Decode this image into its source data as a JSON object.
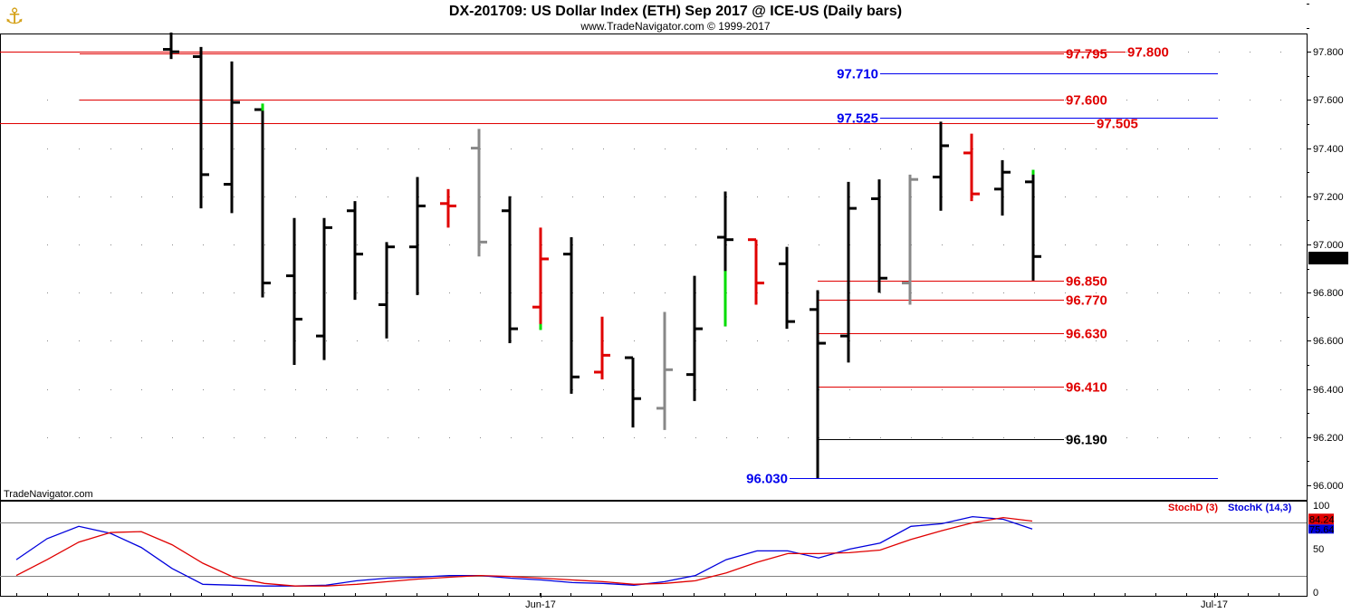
{
  "header": {
    "title": "DX-201709:  US Dollar Index (ETH) Sep 2017 @ ICE-US  (Daily bars)",
    "subtitle": "www.TradeNavigator.com © 1999-2017"
  },
  "watermark": "TradeNavigator.com",
  "icons": {
    "logo": "anchor-icon"
  },
  "colors": {
    "up": "#00dd00",
    "down": "#e00000",
    "neutral": "#000000",
    "gray": "#888888",
    "red_level": "#e00000",
    "blue_level": "#0000ee",
    "black_level": "#000000",
    "stoch_d": "#e00000",
    "stoch_k": "#0000dd"
  },
  "chart_data": [
    {
      "type": "ohlc",
      "price_labels": [
        "97.800",
        "97.600",
        "97.400",
        "97.200",
        "97.000",
        "96.800",
        "96.600",
        "96.400",
        "96.200",
        "96.000"
      ],
      "last_price": "96.945",
      "x_labels": [
        "Jun-17",
        "Jul-17"
      ],
      "ylim": [
        95.99,
        98.07
      ],
      "bars": [
        {
          "x": 189,
          "o": 97.81,
          "h": 97.88,
          "l": 97.77,
          "c": 97.8,
          "color": "neutral"
        },
        {
          "x": 222,
          "o": 97.78,
          "h": 97.82,
          "l": 97.15,
          "c": 97.29,
          "color": "neutral"
        },
        {
          "x": 256,
          "o": 97.25,
          "h": 97.76,
          "l": 97.13,
          "c": 97.59,
          "color": "neutral"
        },
        {
          "x": 290,
          "o": 97.56,
          "h": 97.58,
          "l": 96.78,
          "c": 96.84,
          "color": "neutral"
        },
        {
          "x": 325,
          "o": 96.87,
          "h": 97.11,
          "l": 96.5,
          "c": 96.69,
          "color": "neutral"
        },
        {
          "x": 358,
          "o": 96.62,
          "h": 97.11,
          "l": 96.52,
          "c": 97.07,
          "color": "neutral"
        },
        {
          "x": 392,
          "o": 97.14,
          "h": 97.18,
          "l": 96.77,
          "c": 96.96,
          "color": "neutral"
        },
        {
          "x": 427,
          "o": 96.75,
          "h": 97.01,
          "l": 96.61,
          "c": 96.99,
          "color": "neutral"
        },
        {
          "x": 461,
          "o": 96.99,
          "h": 97.28,
          "l": 96.79,
          "c": 97.16,
          "color": "neutral"
        },
        {
          "x": 495,
          "o": 97.17,
          "h": 97.23,
          "l": 97.07,
          "c": 97.16,
          "color": "down"
        },
        {
          "x": 529,
          "o": 97.4,
          "h": 97.48,
          "l": 96.95,
          "c": 97.01,
          "color": "gray"
        },
        {
          "x": 563,
          "o": 97.14,
          "h": 97.2,
          "l": 96.59,
          "c": 96.65,
          "color": "neutral"
        },
        {
          "x": 597,
          "o": 96.74,
          "h": 97.07,
          "l": 96.65,
          "c": 96.94,
          "color": "down"
        },
        {
          "x": 631,
          "o": 96.96,
          "h": 97.03,
          "l": 96.38,
          "c": 96.45,
          "color": "neutral"
        },
        {
          "x": 665,
          "o": 96.47,
          "h": 96.7,
          "l": 96.44,
          "c": 96.54,
          "color": "down"
        },
        {
          "x": 699,
          "o": 96.53,
          "h": 96.53,
          "l": 96.24,
          "c": 96.36,
          "color": "neutral"
        },
        {
          "x": 734,
          "o": 96.32,
          "h": 96.72,
          "l": 96.23,
          "c": 96.48,
          "color": "gray"
        },
        {
          "x": 767,
          "o": 96.46,
          "h": 96.87,
          "l": 96.35,
          "c": 96.65,
          "color": "neutral"
        },
        {
          "x": 801,
          "o": 97.03,
          "h": 97.22,
          "l": 96.66,
          "c": 97.02,
          "color": "neutral"
        },
        {
          "x": 835,
          "o": 97.02,
          "h": 97.02,
          "l": 96.75,
          "c": 96.84,
          "color": "down"
        },
        {
          "x": 869,
          "o": 96.92,
          "h": 96.99,
          "l": 96.65,
          "c": 96.68,
          "color": "neutral"
        },
        {
          "x": 903,
          "o": 96.73,
          "h": 96.81,
          "l": 96.03,
          "c": 96.59,
          "color": "neutral"
        },
        {
          "x": 937,
          "o": 96.62,
          "h": 97.26,
          "l": 96.51,
          "c": 97.15,
          "color": "neutral"
        },
        {
          "x": 971,
          "o": 97.19,
          "h": 97.27,
          "l": 96.8,
          "c": 96.86,
          "color": "neutral"
        },
        {
          "x": 1005,
          "o": 96.84,
          "h": 97.29,
          "l": 96.75,
          "c": 97.27,
          "color": "gray"
        },
        {
          "x": 1039,
          "o": 97.28,
          "h": 97.51,
          "l": 97.14,
          "c": 97.41,
          "color": "neutral"
        },
        {
          "x": 1073,
          "o": 97.38,
          "h": 97.46,
          "l": 97.18,
          "c": 97.21,
          "color": "down"
        },
        {
          "x": 1107,
          "o": 97.23,
          "h": 97.35,
          "l": 97.12,
          "c": 97.3,
          "color": "neutral"
        },
        {
          "x": 1141,
          "o": 97.26,
          "h": 97.3,
          "l": 96.85,
          "c": 96.95,
          "color": "neutral"
        }
      ],
      "green_tips": [
        {
          "x": 290,
          "from": 97.585,
          "to": 97.555
        },
        {
          "x": 597,
          "from": 96.67,
          "to": 96.645
        },
        {
          "x": 801,
          "from": 96.89,
          "to": 96.66
        },
        {
          "x": 1141,
          "from": 97.31,
          "to": 97.29
        }
      ],
      "levels": [
        {
          "value": 97.795,
          "label": "97.795",
          "color": "red_level",
          "x1": 88,
          "x2": 1175,
          "label_x": 1177
        },
        {
          "value": 97.8,
          "label": "97.800",
          "color": "red_level",
          "x1": 0,
          "x2": 1243,
          "label_x": 1245
        },
        {
          "value": 97.71,
          "label": "97.710",
          "color": "blue_level",
          "x1": 972,
          "x2": 1345,
          "label_x": 970,
          "anchor": "end"
        },
        {
          "value": 97.6,
          "label": "97.600",
          "color": "red_level",
          "x1": 88,
          "x2": 1175,
          "label_x": 1177
        },
        {
          "value": 97.525,
          "label": "97.525",
          "color": "blue_level",
          "x1": 972,
          "x2": 1345,
          "label_x": 970,
          "anchor": "end"
        },
        {
          "value": 97.505,
          "label": "97.505",
          "color": "red_level",
          "x1": 0,
          "x2": 1209,
          "label_x": 1211
        },
        {
          "value": 96.85,
          "label": "96.850",
          "color": "red_level",
          "x1": 903,
          "x2": 1175,
          "label_x": 1177
        },
        {
          "value": 96.77,
          "label": "96.770",
          "color": "red_level",
          "x1": 903,
          "x2": 1175,
          "label_x": 1177
        },
        {
          "value": 96.63,
          "label": "96.630",
          "color": "red_level",
          "x1": 903,
          "x2": 1175,
          "label_x": 1177
        },
        {
          "value": 96.41,
          "label": "96.410",
          "color": "red_level",
          "x1": 903,
          "x2": 1175,
          "label_x": 1177
        },
        {
          "value": 96.19,
          "label": "96.190",
          "color": "black_level",
          "x1": 903,
          "x2": 1175,
          "label_x": 1177
        },
        {
          "value": 96.03,
          "label": "96.030",
          "color": "blue_level",
          "x1": 872,
          "x2": 1345,
          "label_x": 870,
          "anchor": "end"
        }
      ]
    },
    {
      "type": "line",
      "legend": [
        "StochD (3)",
        "StochK (14,3)"
      ],
      "y_labels": [
        "100",
        "50",
        "0"
      ],
      "ylim": [
        0,
        100
      ],
      "guide_levels": [
        80,
        20
      ],
      "last_values": {
        "d": "84.24",
        "k": "75.64"
      },
      "series": [
        {
          "name": "StochK (14,3)",
          "color": "stoch_k",
          "x": [
            18,
            52,
            87,
            122,
            156,
            190,
            224,
            258,
            292,
            326,
            360,
            394,
            428,
            462,
            496,
            530,
            564,
            598,
            632,
            666,
            700,
            734,
            768,
            802,
            836,
            870,
            904,
            938,
            972,
            1006,
            1040,
            1074,
            1108,
            1140
          ],
          "values": [
            38,
            62,
            76,
            68,
            52,
            28,
            10,
            9,
            8,
            8,
            9,
            14,
            17,
            18,
            20,
            20,
            17,
            15,
            12,
            11,
            9,
            13,
            20,
            38,
            48,
            48,
            40,
            50,
            57,
            76,
            79,
            87,
            84,
            73
          ]
        },
        {
          "name": "StochD (3)",
          "color": "stoch_d",
          "x": [
            18,
            52,
            87,
            122,
            156,
            190,
            224,
            258,
            292,
            326,
            360,
            394,
            428,
            462,
            496,
            530,
            564,
            598,
            632,
            666,
            700,
            734,
            768,
            802,
            836,
            870,
            904,
            938,
            972,
            1006,
            1040,
            1074,
            1108,
            1140
          ],
          "values": [
            20,
            38,
            58,
            69,
            70,
            55,
            34,
            18,
            11,
            8,
            8,
            10,
            13,
            16,
            18,
            20,
            19,
            17,
            15,
            13,
            10,
            11,
            14,
            23,
            35,
            45,
            45,
            46,
            49,
            61,
            71,
            80,
            86,
            82
          ]
        }
      ]
    }
  ]
}
